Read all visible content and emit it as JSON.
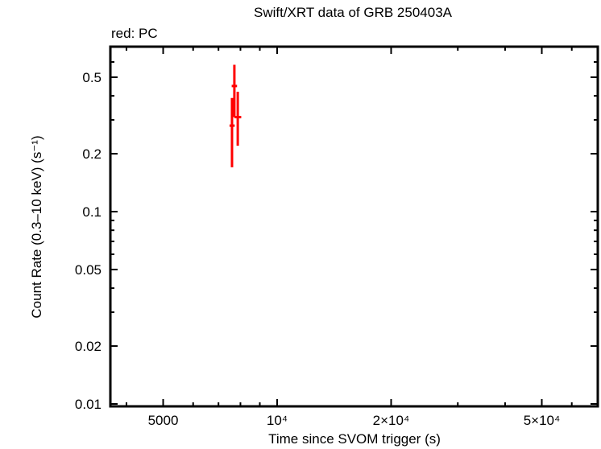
{
  "chart_data": {
    "type": "scatter",
    "title": "Swift/XRT data of GRB 250403A",
    "subtitle": "red: PC",
    "xlabel": "Time since SVOM trigger (s)",
    "ylabel": "Count Rate (0.3–10 keV) (s⁻¹)",
    "xscale": "log",
    "yscale": "log",
    "xlim": [
      3800,
      68000
    ],
    "ylim": [
      0.0095,
      0.66
    ],
    "x_ticks": [
      {
        "value": 5000,
        "label": "5000"
      },
      {
        "value": 10000,
        "label": "10⁴"
      },
      {
        "value": 20000,
        "label": "2×10⁴"
      },
      {
        "value": 50000,
        "label": "5×10⁴"
      }
    ],
    "y_ticks": [
      {
        "value": 0.5,
        "label": "0.5"
      },
      {
        "value": 0.2,
        "label": "0.2"
      },
      {
        "value": 0.1,
        "label": "0.1"
      },
      {
        "value": 0.05,
        "label": "0.05"
      },
      {
        "value": 0.02,
        "label": "0.02"
      },
      {
        "value": 0.01,
        "label": "0.01"
      }
    ],
    "grid": false,
    "series": [
      {
        "name": "PC",
        "color": "#ff0000",
        "points": [
          {
            "x": 7600,
            "xerr": [
              7560,
              7650
            ],
            "y": 0.28,
            "yerr": [
              0.17,
              0.39
            ]
          },
          {
            "x": 7710,
            "xerr": [
              7660,
              7760
            ],
            "y": 0.45,
            "yerr": [
              0.31,
              0.58
            ]
          },
          {
            "x": 7870,
            "xerr": [
              7790,
              7960
            ],
            "y": 0.31,
            "yerr": [
              0.22,
              0.42
            ]
          }
        ]
      }
    ]
  }
}
